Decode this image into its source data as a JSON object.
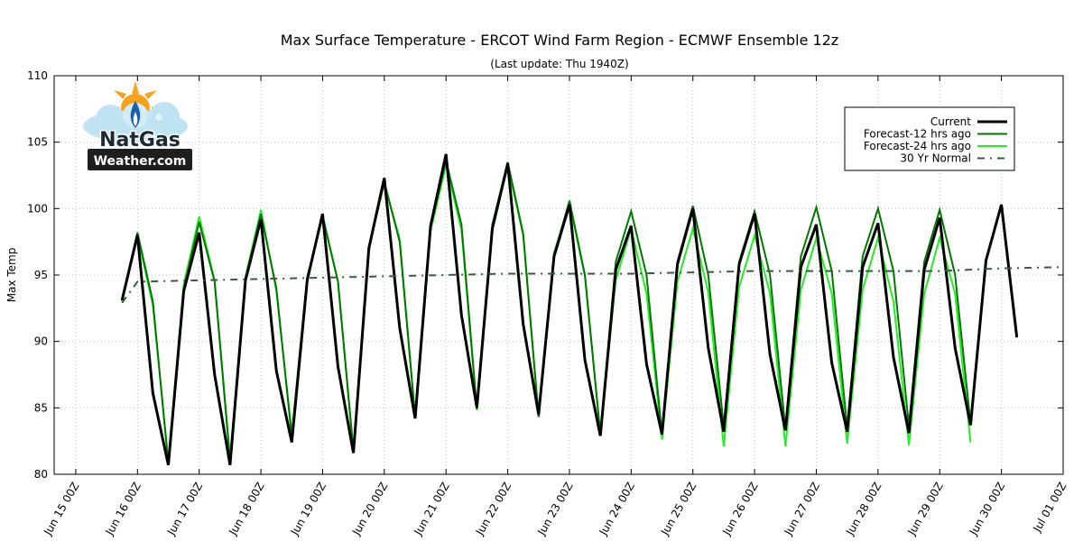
{
  "chart_data": {
    "type": "line",
    "title": "Max Surface Temperature - ERCOT Wind Farm Region - ECMWF Ensemble 12z",
    "subtitle": "(Last update: Thu 1940Z)",
    "ylabel": "Max Temp",
    "ylim": [
      80,
      110
    ],
    "yticks": [
      80,
      85,
      90,
      95,
      100,
      105,
      110
    ],
    "x_unit": "days from Jun 15 00Z",
    "xlim": [
      -0.35,
      16
    ],
    "xticks": [
      {
        "x": 0,
        "label": "Jun 15 00Z"
      },
      {
        "x": 1,
        "label": "Jun 16 00Z"
      },
      {
        "x": 2,
        "label": "Jun 17 00Z"
      },
      {
        "x": 3,
        "label": "Jun 18 00Z"
      },
      {
        "x": 4,
        "label": "Jun 19 00Z"
      },
      {
        "x": 5,
        "label": "Jun 20 00Z"
      },
      {
        "x": 6,
        "label": "Jun 21 00Z"
      },
      {
        "x": 7,
        "label": "Jun 22 00Z"
      },
      {
        "x": 8,
        "label": "Jun 23 00Z"
      },
      {
        "x": 9,
        "label": "Jun 24 00Z"
      },
      {
        "x": 10,
        "label": "Jun 25 00Z"
      },
      {
        "x": 11,
        "label": "Jun 26 00Z"
      },
      {
        "x": 12,
        "label": "Jun 27 00Z"
      },
      {
        "x": 13,
        "label": "Jun 28 00Z"
      },
      {
        "x": 14,
        "label": "Jun 29 00Z"
      },
      {
        "x": 15,
        "label": "Jun 30 00Z"
      },
      {
        "x": 16,
        "label": "Jul 01 00Z"
      }
    ],
    "grid": true,
    "legend_position": "top-right",
    "series": [
      {
        "name": "Forecast-24 hrs ago",
        "color": "#22ee22",
        "style": "solid",
        "x": [
          0.75,
          1.0,
          1.25,
          1.5,
          1.75,
          2.0,
          2.25,
          2.5,
          2.75,
          3.0,
          3.25,
          3.5,
          3.75,
          4.0,
          4.25,
          4.5,
          4.75,
          5.0,
          5.25,
          5.5,
          5.75,
          6.0,
          6.25,
          6.5,
          6.75,
          7.0,
          7.25,
          7.5,
          7.75,
          8.0,
          8.25,
          8.5,
          8.75,
          9.0,
          9.25,
          9.5,
          9.75,
          10.0,
          10.25,
          10.5,
          10.75,
          11.0,
          11.25,
          11.5,
          11.75,
          12.0,
          12.25,
          12.5,
          12.75,
          13.0,
          13.25,
          13.5,
          13.75,
          14.0,
          14.25,
          14.5,
          14.75
        ],
        "values": [
          93.0,
          98.0,
          92.7,
          81.0,
          94.3,
          99.4,
          94.6,
          81.2,
          94.9,
          99.9,
          93.8,
          83.1,
          94.9,
          99.3,
          94.5,
          81.6,
          97.2,
          101.9,
          97.7,
          84.3,
          98.3,
          103.3,
          98.4,
          84.8,
          98.3,
          103.2,
          98.0,
          84.4,
          96.7,
          100.4,
          94.9,
          83.1,
          94.6,
          98.5,
          93.6,
          82.6,
          94.5,
          98.5,
          93.7,
          82.1,
          94.1,
          98.0,
          93.6,
          82.1,
          93.9,
          97.8,
          93.6,
          82.3,
          93.9,
          97.8,
          93.0,
          82.2,
          93.6,
          97.8,
          93.6,
          82.4,
          null
        ]
      },
      {
        "name": "Forecast-12 hrs ago",
        "color": "#007700",
        "style": "solid",
        "x": [
          0.75,
          1.0,
          1.25,
          1.5,
          1.75,
          2.0,
          2.25,
          2.5,
          2.75,
          3.0,
          3.25,
          3.5,
          3.75,
          4.0,
          4.25,
          4.5,
          4.75,
          5.0,
          5.25,
          5.5,
          5.75,
          6.0,
          6.25,
          6.5,
          6.75,
          7.0,
          7.25,
          7.5,
          7.75,
          8.0,
          8.25,
          8.5,
          8.75,
          9.0,
          9.25,
          9.5,
          9.75,
          10.0,
          10.25,
          10.5,
          10.75,
          11.0,
          11.25,
          11.5,
          11.75,
          12.0,
          12.25,
          12.5,
          12.75,
          13.0,
          13.25,
          13.5,
          13.75,
          14.0,
          14.25,
          14.5,
          14.75
        ],
        "values": [
          93.2,
          98.2,
          93.0,
          80.8,
          94.0,
          99.0,
          94.5,
          81.0,
          94.7,
          99.6,
          94.0,
          82.8,
          94.8,
          99.5,
          94.5,
          81.8,
          97.0,
          102.0,
          97.5,
          84.3,
          98.6,
          103.6,
          98.8,
          84.9,
          98.8,
          103.5,
          98.1,
          84.3,
          96.5,
          100.6,
          95.0,
          83.0,
          96.0,
          99.8,
          95.0,
          83.0,
          96.0,
          100.2,
          95.0,
          83.6,
          96.0,
          99.8,
          95.0,
          83.4,
          96.4,
          100.1,
          95.3,
          83.5,
          96.4,
          100.0,
          95.3,
          83.6,
          96.0,
          99.9,
          95.0,
          83.8,
          null
        ]
      },
      {
        "name": "Current",
        "color": "#000000",
        "style": "solid",
        "x": [
          0.75,
          1.0,
          1.25,
          1.5,
          1.75,
          2.0,
          2.25,
          2.5,
          2.75,
          3.0,
          3.25,
          3.5,
          3.75,
          4.0,
          4.25,
          4.5,
          4.75,
          5.0,
          5.25,
          5.5,
          5.75,
          6.0,
          6.25,
          6.5,
          6.75,
          7.0,
          7.25,
          7.5,
          7.75,
          8.0,
          8.25,
          8.5,
          8.75,
          9.0,
          9.25,
          9.5,
          9.75,
          10.0,
          10.25,
          10.5,
          10.75,
          11.0,
          11.25,
          11.5,
          11.75,
          12.0,
          12.25,
          12.5,
          12.75,
          13.0,
          13.25,
          13.5,
          13.75,
          14.0,
          14.25,
          14.5,
          14.75,
          15.0,
          15.25
        ],
        "values": [
          93.1,
          98.0,
          86.1,
          80.7,
          93.8,
          98.2,
          87.5,
          80.7,
          94.6,
          99.2,
          87.8,
          82.4,
          94.6,
          99.6,
          88.1,
          81.6,
          97.0,
          102.3,
          91.0,
          84.2,
          98.7,
          104.1,
          92.0,
          85.0,
          98.5,
          103.4,
          91.3,
          84.5,
          96.4,
          100.3,
          88.6,
          82.9,
          95.4,
          98.7,
          88.3,
          83.0,
          95.8,
          100.0,
          89.5,
          83.2,
          95.8,
          99.6,
          89.0,
          83.3,
          95.6,
          98.8,
          88.4,
          83.2,
          95.6,
          98.9,
          88.8,
          83.1,
          95.4,
          99.3,
          89.5,
          83.7,
          96.1,
          100.3,
          90.3
        ]
      },
      {
        "name": "30 Yr Normal",
        "color": "#3a5a45",
        "style": "dashdot",
        "x": [
          0.75,
          1.0,
          2.0,
          3.0,
          4.0,
          5.0,
          6.0,
          7.0,
          8.0,
          9.0,
          10.0,
          11.0,
          12.0,
          13.0,
          14.0,
          15.0,
          16.0
        ],
        "values": [
          92.9,
          94.5,
          94.6,
          94.7,
          94.8,
          94.9,
          95.0,
          95.1,
          95.1,
          95.1,
          95.2,
          95.3,
          95.3,
          95.3,
          95.3,
          95.5,
          95.6
        ]
      }
    ],
    "legend_order": [
      "Current",
      "Forecast-12 hrs ago",
      "Forecast-24 hrs ago",
      "30 Yr Normal"
    ]
  },
  "logo": {
    "line1": "NatGas",
    "line2": "Weather.com"
  }
}
